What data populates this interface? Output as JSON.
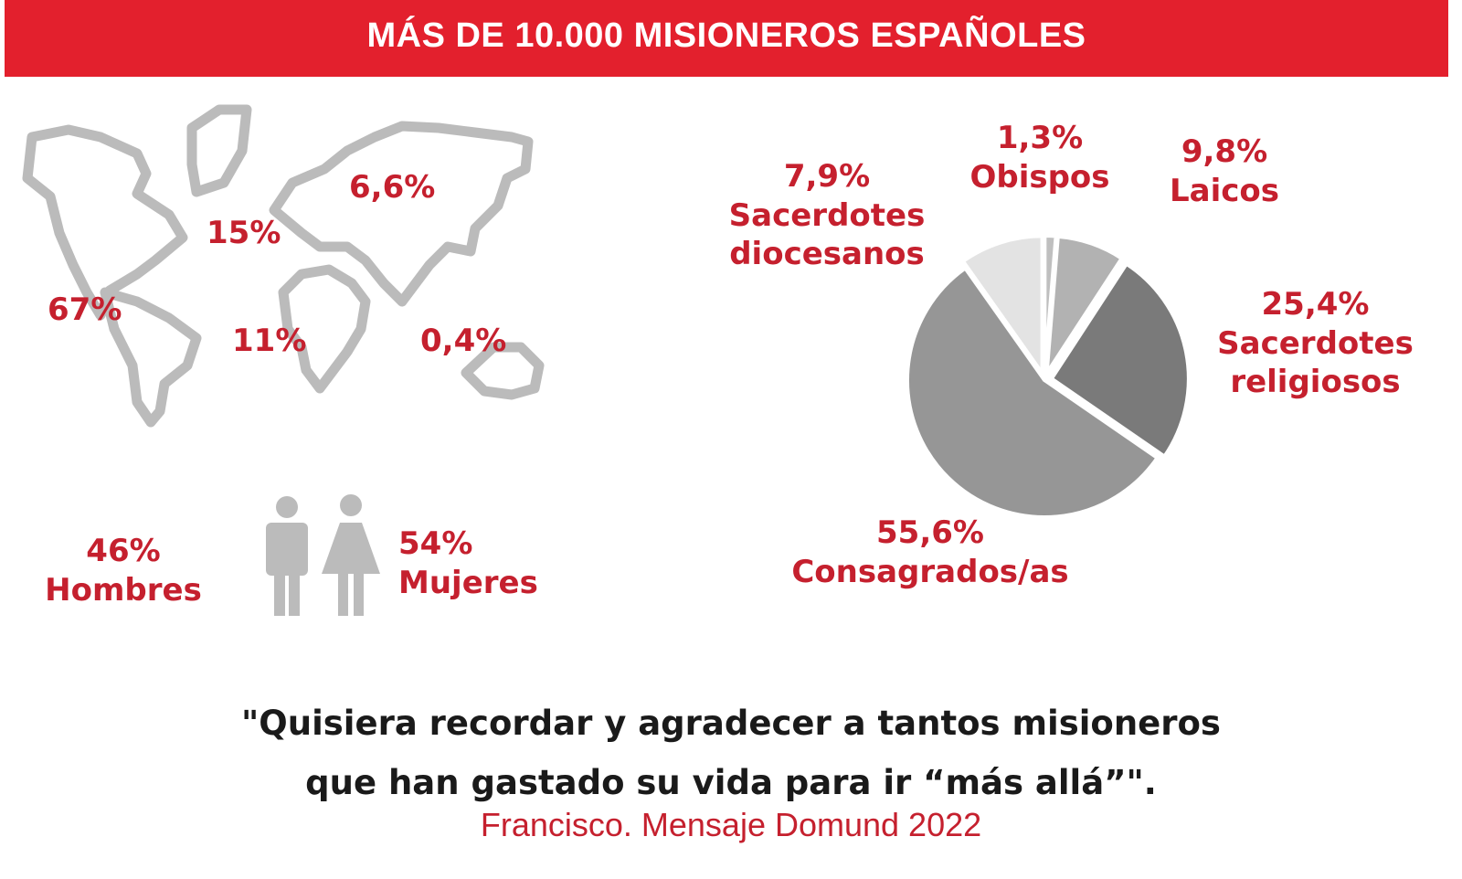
{
  "header": {
    "title": "MÁS DE 10.000 MISIONEROS ESPAÑOLES"
  },
  "colors": {
    "accent": "#e3202d",
    "text_red": "#c5202e",
    "icon_gray": "#bbbbbb"
  },
  "chart_data": [
    {
      "type": "map",
      "regions": [
        {
          "region": "América",
          "value": 67,
          "label": "67%"
        },
        {
          "region": "Europa",
          "value": 15,
          "label": "15%"
        },
        {
          "region": "Asia",
          "value": 6.6,
          "label": "6,6%"
        },
        {
          "region": "África",
          "value": 11,
          "label": "11%"
        },
        {
          "region": "Oceanía",
          "value": 0.4,
          "label": "0,4%"
        }
      ]
    },
    {
      "type": "bar",
      "categories": [
        "Hombres",
        "Mujeres"
      ],
      "values": [
        46,
        54
      ],
      "labels": [
        "46%",
        "54%"
      ]
    },
    {
      "type": "pie",
      "slices": [
        {
          "name": "Laicos",
          "value": 9.8,
          "label": "9,8%",
          "color": "#e3e3e3"
        },
        {
          "name": "Obispos",
          "value": 1.3,
          "label": "1,3%",
          "color": "#bfbfbf"
        },
        {
          "name": "Sacerdotes diocesanos",
          "value": 7.9,
          "label": "7,9%",
          "color": "#b2b2b2"
        },
        {
          "name": "Sacerdotes religiosos",
          "value": 25.4,
          "label": "25,4%",
          "color": "#7a7a7a"
        },
        {
          "name": "Consagrados/as",
          "value": 55.6,
          "label": "55,6%",
          "color": "#969696"
        }
      ]
    }
  ],
  "text": {
    "laicos_pct": "9,8%",
    "laicos_name": "Laicos",
    "obispos_pct": "1,3%",
    "obispos_name": "Obispos",
    "sd_pct": "7,9%",
    "sd_name1": "Sacerdotes",
    "sd_name2": "diocesanos",
    "sr_pct": "25,4%",
    "sr_name1": "Sacerdotes",
    "sr_name2": "religiosos",
    "cons_pct": "55,6%",
    "cons_name": "Consagrados/as",
    "men_pct": "46%",
    "men_label": "Hombres",
    "women_pct": "54%",
    "women_label": "Mujeres"
  },
  "quote": {
    "line1": "\"Quisiera recordar y agradecer a tantos misioneros",
    "line2": "que han gastado su vida para ir “más allá”\".",
    "attribution": "Francisco. Mensaje Domund 2022"
  }
}
